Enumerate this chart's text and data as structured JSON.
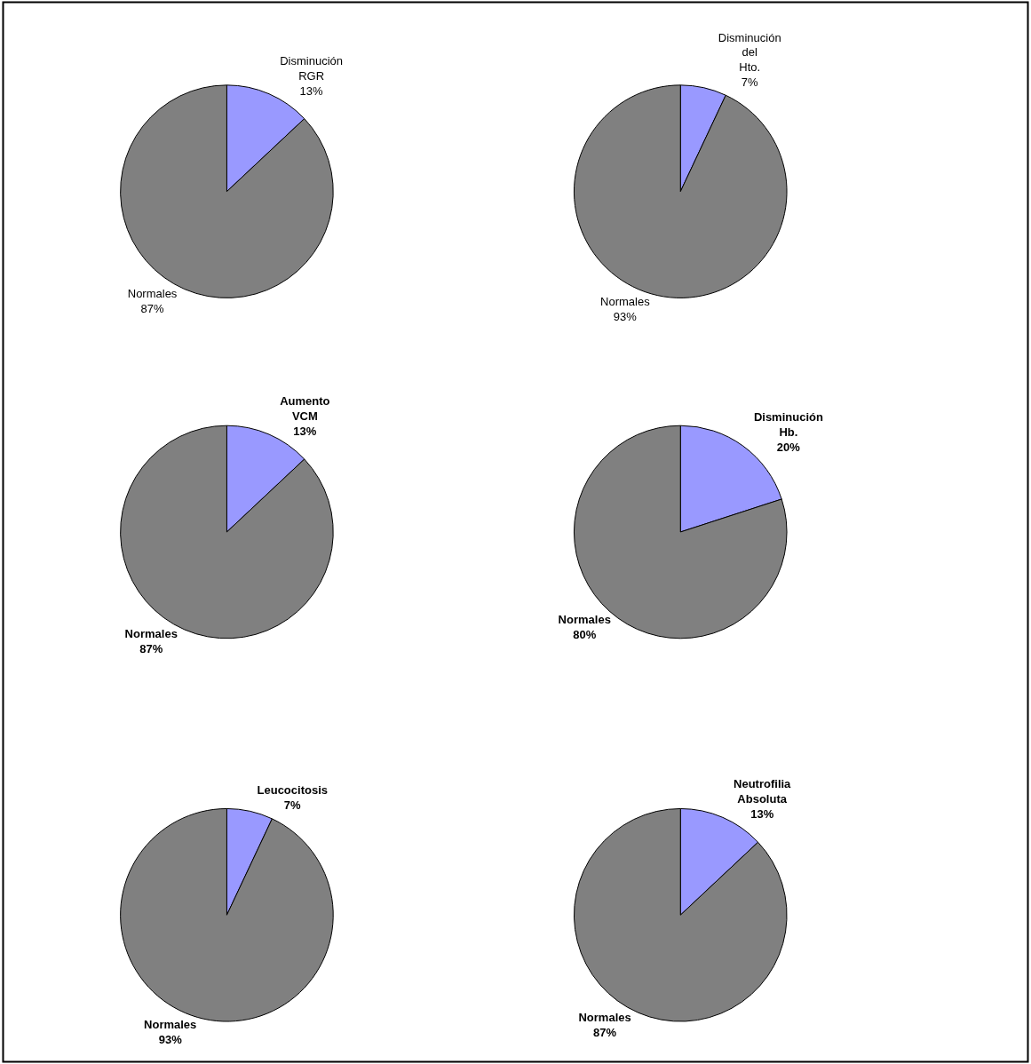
{
  "chart_data": [
    {
      "type": "pie",
      "categories": [
        "Disminución RGR",
        "Normales"
      ],
      "values": [
        13,
        87
      ],
      "colors": [
        "#9999ff",
        "#808080"
      ],
      "value_labels": [
        "13%",
        "87%"
      ]
    },
    {
      "type": "pie",
      "categories": [
        "Disminución del Hto.",
        "Normales"
      ],
      "values": [
        7,
        93
      ],
      "colors": [
        "#9999ff",
        "#808080"
      ],
      "value_labels": [
        "7%",
        "93%"
      ]
    },
    {
      "type": "pie",
      "categories": [
        "Aumento VCM",
        "Normales"
      ],
      "values": [
        13,
        87
      ],
      "colors": [
        "#9999ff",
        "#808080"
      ],
      "value_labels": [
        "13%",
        "87%"
      ]
    },
    {
      "type": "pie",
      "categories": [
        "Disminución Hb.",
        "Normales"
      ],
      "values": [
        20,
        80
      ],
      "colors": [
        "#9999ff",
        "#808080"
      ],
      "value_labels": [
        "20%",
        "80%"
      ]
    },
    {
      "type": "pie",
      "categories": [
        "Leucocitosis",
        "Normales"
      ],
      "values": [
        7,
        93
      ],
      "colors": [
        "#9999ff",
        "#808080"
      ],
      "value_labels": [
        "7%",
        "93%"
      ]
    },
    {
      "type": "pie",
      "categories": [
        "Neutrofilia Absoluta",
        "Normales"
      ],
      "values": [
        13,
        87
      ],
      "colors": [
        "#9999ff",
        "#808080"
      ],
      "value_labels": [
        "13%",
        "87%"
      ]
    }
  ]
}
